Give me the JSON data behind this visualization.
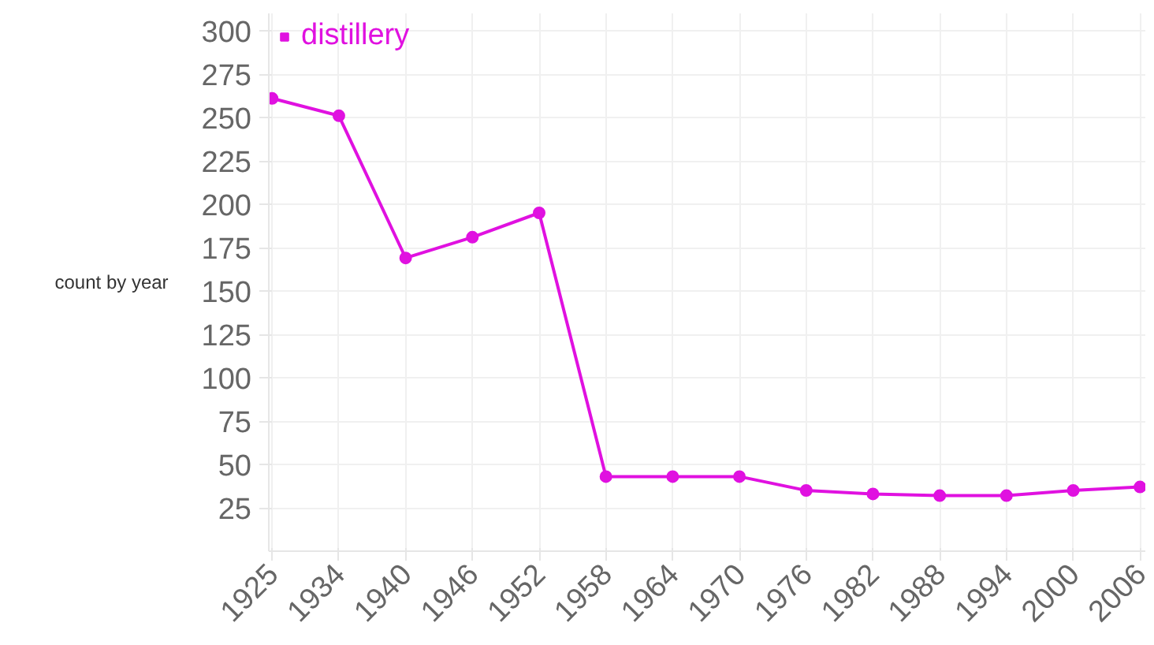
{
  "chart_data": {
    "type": "line",
    "ylabel": "count by year",
    "categories": [
      "1925",
      "1934",
      "1940",
      "1946",
      "1952",
      "1958",
      "1964",
      "1970",
      "1976",
      "1982",
      "1988",
      "1994",
      "2000",
      "2006"
    ],
    "series": [
      {
        "name": "distillery",
        "color": "#e011e0",
        "values": [
          261,
          251,
          169,
          181,
          195,
          43,
          43,
          43,
          35,
          33,
          32,
          32,
          35,
          37
        ]
      }
    ],
    "ylim": [
      0,
      310
    ],
    "yticks": [
      25,
      50,
      75,
      100,
      125,
      150,
      175,
      200,
      225,
      250,
      275,
      300
    ],
    "grid": true,
    "legend": "top left",
    "marker": "circle",
    "line_style": "solid"
  }
}
